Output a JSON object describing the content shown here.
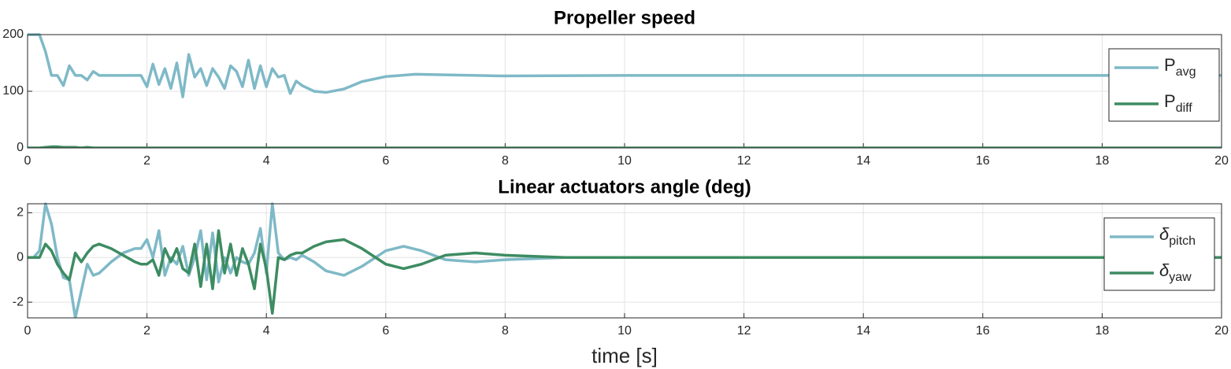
{
  "chart_data": [
    {
      "type": "line",
      "title": "Propeller speed",
      "x": [
        0,
        0.2,
        0.3,
        0.4,
        0.5,
        0.6,
        0.7,
        0.8,
        0.9,
        1.0,
        1.1,
        1.2,
        1.5,
        1.9,
        2.0,
        2.1,
        2.2,
        2.3,
        2.4,
        2.5,
        2.6,
        2.7,
        2.8,
        2.9,
        3.0,
        3.1,
        3.2,
        3.3,
        3.4,
        3.5,
        3.6,
        3.7,
        3.8,
        3.9,
        4.0,
        4.1,
        4.2,
        4.3,
        4.4,
        4.5,
        4.6,
        4.8,
        5.0,
        5.3,
        5.6,
        6.0,
        6.5,
        7.0,
        8.0,
        10,
        14,
        20
      ],
      "series": [
        {
          "name": "P",
          "subscript": "avg",
          "color": "#7fb9c7",
          "values": [
            200,
            200,
            170,
            128,
            128,
            110,
            145,
            128,
            128,
            120,
            135,
            128,
            128,
            128,
            108,
            148,
            112,
            140,
            105,
            150,
            90,
            165,
            125,
            140,
            110,
            140,
            125,
            105,
            145,
            135,
            108,
            155,
            105,
            145,
            108,
            140,
            125,
            128,
            96,
            118,
            110,
            100,
            98,
            104,
            117,
            126,
            130,
            129,
            127,
            128,
            128,
            128
          ]
        },
        {
          "name": "P",
          "subscript": "diff",
          "color": "#3d8c62",
          "values": [
            0,
            0,
            1,
            2,
            2,
            1,
            1,
            1,
            0,
            1,
            0,
            0,
            0,
            0,
            0,
            0,
            0,
            0,
            0,
            0,
            0,
            0,
            0,
            0,
            0,
            0,
            0,
            0,
            0,
            0,
            0,
            0,
            0,
            0,
            0,
            0,
            0,
            0,
            0,
            0,
            0,
            0,
            0,
            0,
            0,
            0,
            0,
            0,
            0,
            0,
            0,
            0
          ]
        }
      ],
      "xlim": [
        0,
        20
      ],
      "xticks": [
        0,
        2,
        4,
        6,
        8,
        10,
        12,
        14,
        16,
        18,
        20
      ],
      "ylim": [
        0,
        200
      ],
      "yticks": [
        0,
        100,
        200
      ],
      "grid": true,
      "legend": "right"
    },
    {
      "type": "line",
      "title": "Linear actuators angle (deg)",
      "xlabel": "time [s]",
      "x": [
        0,
        0.1,
        0.2,
        0.3,
        0.4,
        0.5,
        0.6,
        0.7,
        0.8,
        0.9,
        1.0,
        1.1,
        1.2,
        1.4,
        1.6,
        1.8,
        1.9,
        2.0,
        2.1,
        2.2,
        2.3,
        2.4,
        2.5,
        2.6,
        2.7,
        2.8,
        2.9,
        3.0,
        3.1,
        3.2,
        3.3,
        3.4,
        3.5,
        3.6,
        3.7,
        3.8,
        3.9,
        4.0,
        4.1,
        4.2,
        4.3,
        4.4,
        4.5,
        4.6,
        4.8,
        5.0,
        5.3,
        5.6,
        6.0,
        6.3,
        6.6,
        7.0,
        7.5,
        8.0,
        9,
        10,
        20
      ],
      "series": [
        {
          "name": "δ",
          "subscript": "pitch",
          "color": "#7fb9c7",
          "values": [
            0,
            0,
            0.3,
            2.4,
            1.5,
            0,
            -0.9,
            -1,
            -2.7,
            -1.5,
            -0.3,
            -0.8,
            -0.7,
            -0.2,
            0.2,
            0.4,
            0.4,
            0.8,
            0,
            1.2,
            -0.8,
            0,
            -0.3,
            0.5,
            -0.8,
            0,
            1.2,
            -1,
            1.1,
            -1.1,
            0,
            -0.7,
            0,
            -0.2,
            -0.3,
            0.2,
            1.3,
            -0.7,
            2.4,
            0.2,
            -0.1,
            0,
            -0.1,
            0.1,
            -0.2,
            -0.6,
            -0.8,
            -0.4,
            0.3,
            0.5,
            0.3,
            -0.1,
            -0.2,
            -0.1,
            0,
            0,
            0
          ]
        },
        {
          "name": "δ",
          "subscript": "yaw",
          "color": "#3d8c62",
          "values": [
            0,
            0,
            0,
            0.6,
            0.3,
            -0.3,
            -0.7,
            -1,
            0.2,
            -0.2,
            0.2,
            0.5,
            0.6,
            0.4,
            0.1,
            -0.2,
            -0.3,
            -0.3,
            -0.1,
            -0.8,
            0.4,
            -0.2,
            0.4,
            -0.5,
            -0.7,
            0.6,
            -1.3,
            0.6,
            -1.4,
            1.2,
            -0.7,
            0.6,
            -0.8,
            0.4,
            -0.3,
            -1.4,
            0.6,
            -0.5,
            -2.5,
            0,
            -0.1,
            0.1,
            0.2,
            0.2,
            0.5,
            0.7,
            0.8,
            0.4,
            -0.3,
            -0.5,
            -0.3,
            0.1,
            0.2,
            0.1,
            0,
            0,
            0
          ]
        }
      ],
      "xlim": [
        0,
        20
      ],
      "xticks": [
        0,
        2,
        4,
        6,
        8,
        10,
        12,
        14,
        16,
        18,
        20
      ],
      "ylim": [
        -2.7,
        2.4
      ],
      "yticks": [
        -2,
        0,
        2
      ],
      "grid": true,
      "legend": "right"
    }
  ]
}
